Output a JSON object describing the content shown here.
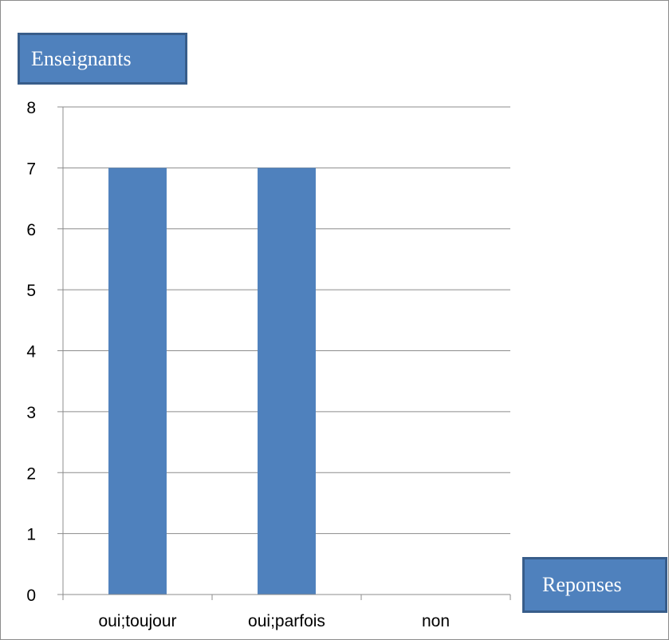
{
  "chart_data": {
    "type": "bar",
    "title": "",
    "ylabel": "Enseignants",
    "xlabel": "Reponses",
    "categories": [
      "oui;toujour",
      "oui;parfois",
      "non"
    ],
    "values": [
      7,
      7,
      0
    ],
    "ylim": [
      0,
      8
    ],
    "yticks": [
      "0",
      "1",
      "2",
      "3",
      "4",
      "5",
      "6",
      "7",
      "8"
    ],
    "grid": true,
    "legend": "none",
    "colors": {
      "bar": "#4f81bd",
      "grid": "#8c8c8c",
      "axis": "#8c8c8c",
      "label_box": "#4f81bd",
      "label_box_border": "#385d8a"
    }
  }
}
